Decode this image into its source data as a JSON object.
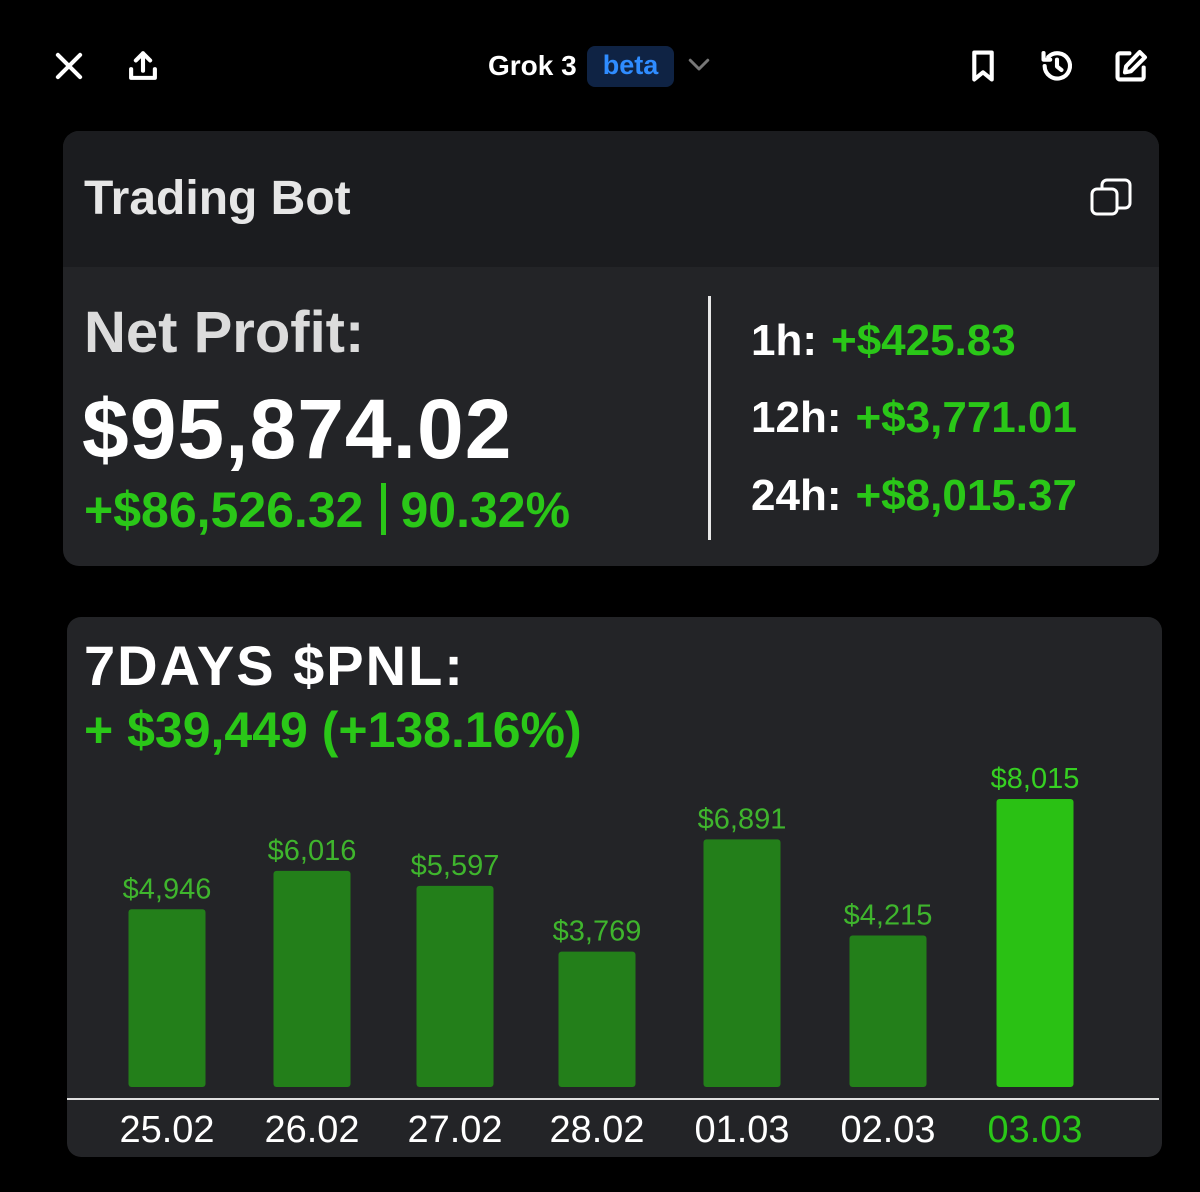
{
  "topbar": {
    "model_name": "Grok 3",
    "badge": "beta",
    "icons": [
      "close-icon",
      "share-icon",
      "chevron-down-icon",
      "bookmark-icon",
      "history-icon",
      "edit-icon"
    ]
  },
  "card": {
    "title": "Trading Bot",
    "net_profit_label": "Net Profit:",
    "net_profit_value": "$95,874.02",
    "gain_amount": "+$86,526.32",
    "gain_percent": "90.32%",
    "timeframes": [
      {
        "label": "1h:",
        "value": "+$425.83"
      },
      {
        "label": "12h:",
        "value": "+$3,771.01"
      },
      {
        "label": "24h:",
        "value": "+$8,015.37"
      }
    ]
  },
  "pnl": {
    "title": "7DAYS $PNL:",
    "subtitle": "+ $39,449 (+138.16%)"
  },
  "colors": {
    "green": "#2ac718",
    "bar": "#237f1a",
    "bar_highlight": "#2ac114",
    "card_bg": "#232427",
    "header_bg": "#1b1c1f",
    "badge_text": "#2f8cff"
  },
  "chart_data": {
    "type": "bar",
    "categories": [
      "25.02",
      "26.02",
      "27.02",
      "28.02",
      "01.03",
      "02.03",
      "03.03"
    ],
    "values": [
      4946,
      6016,
      5597,
      3769,
      6891,
      4215,
      8015
    ],
    "labels": [
      "$4,946",
      "$6,016",
      "$5,597",
      "$3,769",
      "$6,891",
      "$4,215",
      "$8,015"
    ],
    "highlight_index": 6,
    "ylim": [
      0,
      8015
    ]
  }
}
